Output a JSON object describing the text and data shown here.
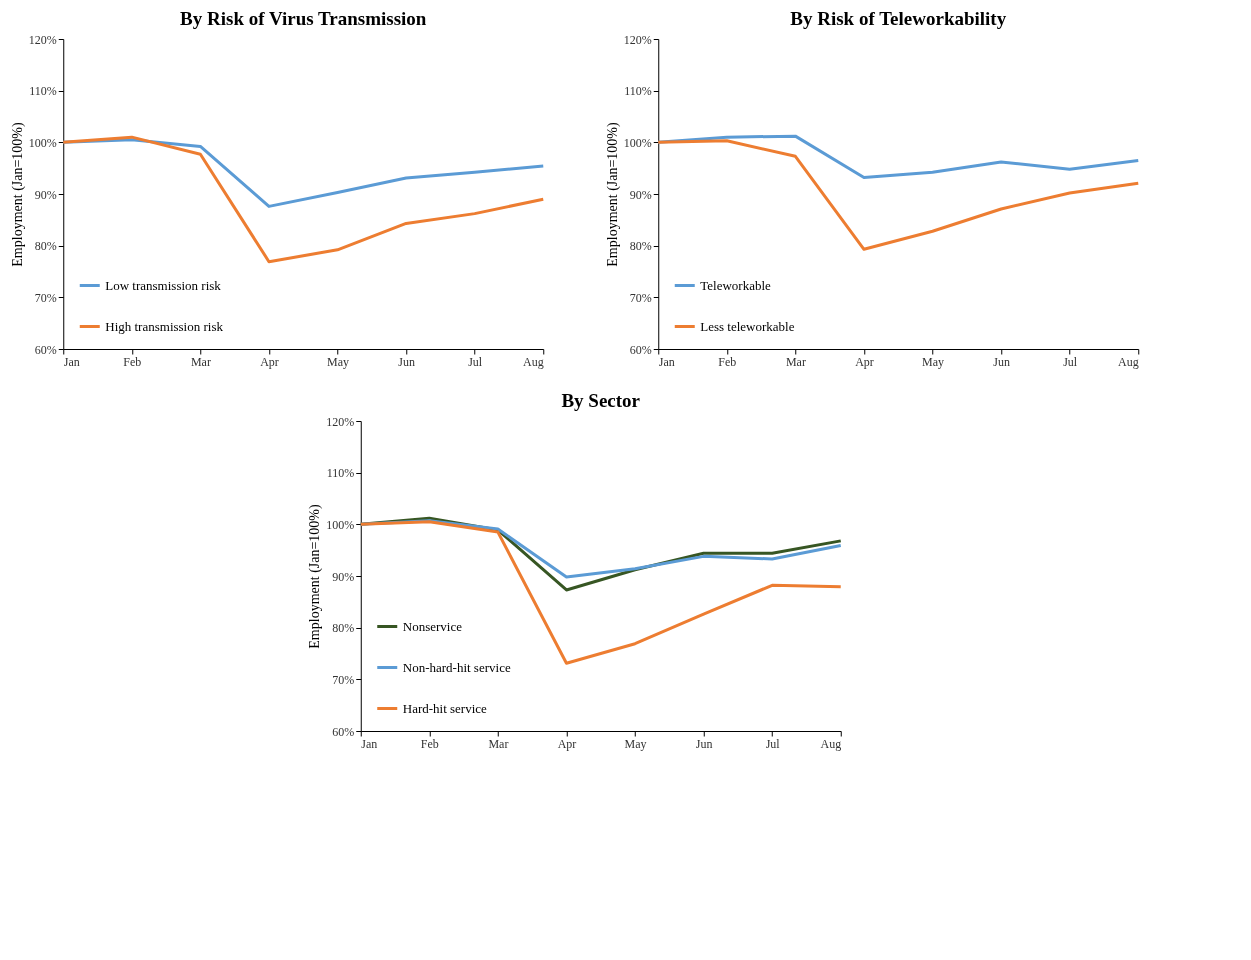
{
  "chart_data": [
    {
      "type": "line",
      "title": "By Risk of Virus Transmission",
      "ylabel": "Employment (Jan=100%)",
      "categories": [
        "Jan",
        "Feb",
        "Mar",
        "Apr",
        "May",
        "Jun",
        "Jul",
        "Aug"
      ],
      "legend": "bottom left",
      "ylim": [
        60,
        120
      ],
      "yticks": [
        {
          "value": 60,
          "label": "60%"
        },
        {
          "value": 70,
          "label": "70%"
        },
        {
          "value": 80,
          "label": "80%"
        },
        {
          "value": 90,
          "label": "90%"
        },
        {
          "value": 100,
          "label": "100%"
        },
        {
          "value": 110,
          "label": "110%"
        },
        {
          "value": 120,
          "label": "120%"
        }
      ],
      "series": [
        {
          "name": "Low transmission risk",
          "color": "#5b9bd5",
          "values": [
            100,
            100.5,
            99.2,
            87.6,
            90.3,
            93.1,
            94.2,
            95.4
          ]
        },
        {
          "name": "High transmission risk",
          "color": "#ed7d31",
          "values": [
            100,
            101,
            97.7,
            76.9,
            79.2,
            84.3,
            86.2,
            89
          ]
        }
      ]
    },
    {
      "type": "line",
      "title": "By Risk of Teleworkability",
      "ylabel": "Employment (Jan=100%)",
      "categories": [
        "Jan",
        "Feb",
        "Mar",
        "Apr",
        "May",
        "Jun",
        "Jul",
        "Aug"
      ],
      "legend": "bottom left",
      "ylim": [
        60,
        120
      ],
      "yticks": [
        {
          "value": 60,
          "label": "60%"
        },
        {
          "value": 70,
          "label": "70%"
        },
        {
          "value": 80,
          "label": "80%"
        },
        {
          "value": 90,
          "label": "90%"
        },
        {
          "value": 100,
          "label": "100%"
        },
        {
          "value": 110,
          "label": "110%"
        },
        {
          "value": 120,
          "label": "120%"
        }
      ],
      "series": [
        {
          "name": "Teleworkable",
          "color": "#5b9bd5",
          "values": [
            100,
            101,
            101.2,
            93.2,
            94.2,
            96.2,
            94.8,
            96.5
          ]
        },
        {
          "name": "Less teleworkable",
          "color": "#ed7d31",
          "values": [
            100,
            100.3,
            97.3,
            79.3,
            82.8,
            87.1,
            90.2,
            92.1
          ]
        }
      ]
    },
    {
      "type": "line",
      "title": "By Sector",
      "ylabel": "Employment (Jan=100%)",
      "categories": [
        "Jan",
        "Feb",
        "Mar",
        "Apr",
        "May",
        "Jun",
        "Jul",
        "Aug"
      ],
      "legend": "bottom left",
      "ylim": [
        60,
        120
      ],
      "yticks": [
        {
          "value": 60,
          "label": "60%"
        },
        {
          "value": 70,
          "label": "70%"
        },
        {
          "value": 80,
          "label": "80%"
        },
        {
          "value": 90,
          "label": "90%"
        },
        {
          "value": 100,
          "label": "100%"
        },
        {
          "value": 110,
          "label": "110%"
        },
        {
          "value": 120,
          "label": "120%"
        }
      ],
      "series": [
        {
          "name": "Nonservice",
          "color": "#375623",
          "values": [
            100,
            101.2,
            98.9,
            87.3,
            91.2,
            94.4,
            94.4,
            96.8
          ]
        },
        {
          "name": "Non-hard-hit service",
          "color": "#5b9bd5",
          "values": [
            100,
            100.7,
            99.1,
            89.8,
            91.4,
            93.8,
            93.3,
            95.9
          ]
        },
        {
          "name": "Hard-hit service",
          "color": "#ed7d31",
          "values": [
            100,
            100.5,
            98.5,
            73.1,
            76.9,
            82.6,
            88.2,
            87.9
          ]
        }
      ]
    }
  ]
}
